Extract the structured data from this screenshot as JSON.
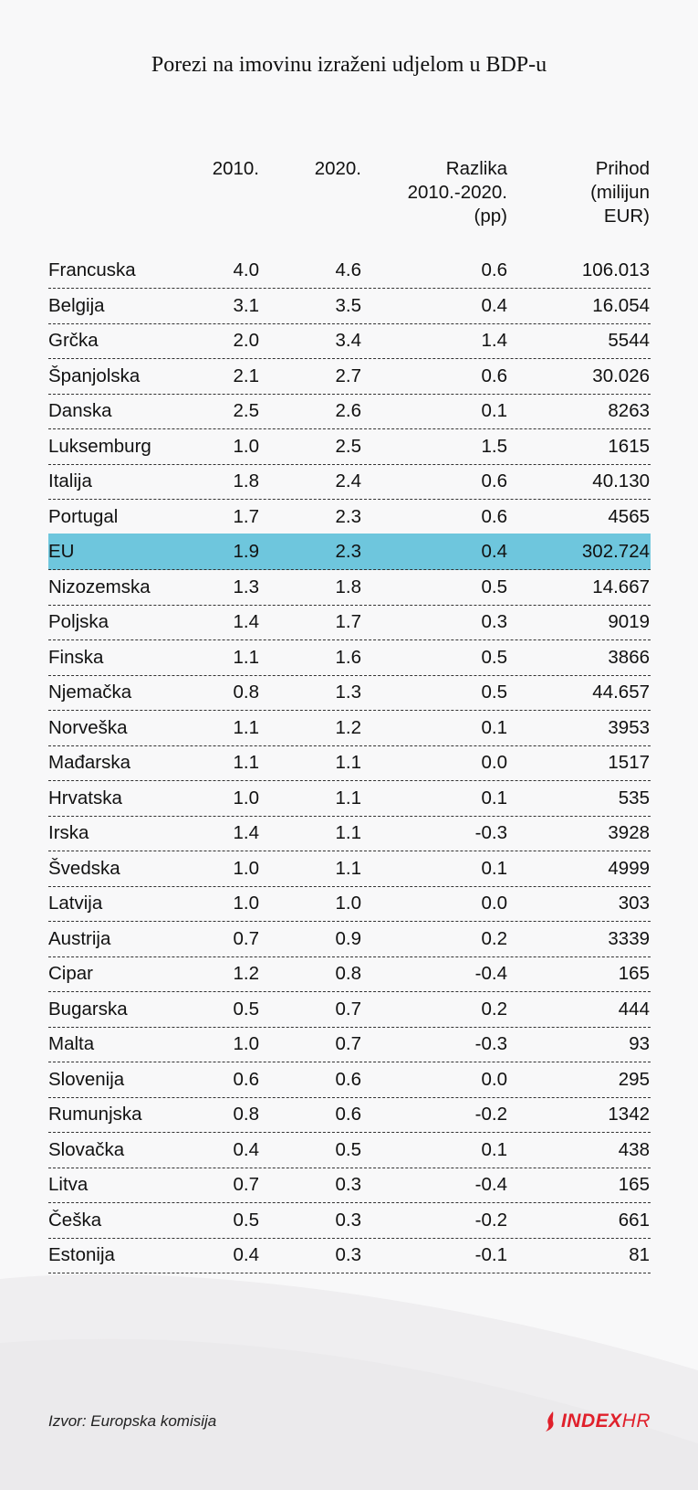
{
  "title": "Porezi na imovinu izraženi udjelom u BDP-u",
  "headers": {
    "col1": "2010.",
    "col2": "2020.",
    "col3": [
      "Razlika",
      "2010.-2020.",
      "(pp)"
    ],
    "col4": [
      "Prihod",
      "(milijun",
      "EUR)"
    ]
  },
  "source": "Izvor: Europska komisija",
  "logo": {
    "brand": "INDEX",
    "suffix": "HR"
  },
  "colors": {
    "highlight": "#6ec6dd",
    "logo": "#e0202b"
  },
  "chart_data": {
    "type": "table",
    "title": "Porezi na imovinu izraženi udjelom u BDP-u",
    "columns": [
      "",
      "2010.",
      "2020.",
      "Razlika 2010.-2020. (pp)",
      "Prihod (milijun EUR)"
    ],
    "rows": [
      [
        "Francuska",
        "4.0",
        "4.6",
        "0.6",
        "106.013"
      ],
      [
        "Belgija",
        "3.1",
        "3.5",
        "0.4",
        "16.054"
      ],
      [
        "Grčka",
        "2.0",
        "3.4",
        "1.4",
        "5544"
      ],
      [
        "Španjolska",
        "2.1",
        "2.7",
        "0.6",
        "30.026"
      ],
      [
        "Danska",
        "2.5",
        "2.6",
        "0.1",
        "8263"
      ],
      [
        "Luksemburg",
        "1.0",
        "2.5",
        "1.5",
        "1615"
      ],
      [
        "Italija",
        "1.8",
        "2.4",
        "0.6",
        "40.130"
      ],
      [
        "Portugal",
        "1.7",
        "2.3",
        "0.6",
        "4565"
      ],
      [
        "EU",
        "1.9",
        "2.3",
        "0.4",
        "302.724"
      ],
      [
        "Nizozemska",
        "1.3",
        "1.8",
        "0.5",
        "14.667"
      ],
      [
        "Poljska",
        "1.4",
        "1.7",
        "0.3",
        "9019"
      ],
      [
        "Finska",
        "1.1",
        "1.6",
        "0.5",
        "3866"
      ],
      [
        "Njemačka",
        "0.8",
        "1.3",
        "0.5",
        "44.657"
      ],
      [
        "Norveška",
        "1.1",
        "1.2",
        "0.1",
        "3953"
      ],
      [
        "Mađarska",
        "1.1",
        "1.1",
        "0.0",
        "1517"
      ],
      [
        "Hrvatska",
        "1.0",
        "1.1",
        "0.1",
        "535"
      ],
      [
        "Irska",
        "1.4",
        "1.1",
        "-0.3",
        "3928"
      ],
      [
        "Švedska",
        "1.0",
        "1.1",
        "0.1",
        "4999"
      ],
      [
        "Latvija",
        "1.0",
        "1.0",
        "0.0",
        "303"
      ],
      [
        "Austrija",
        "0.7",
        "0.9",
        "0.2",
        "3339"
      ],
      [
        "Cipar",
        "1.2",
        "0.8",
        "-0.4",
        "165"
      ],
      [
        "Bugarska",
        "0.5",
        "0.7",
        "0.2",
        "444"
      ],
      [
        "Malta",
        "1.0",
        "0.7",
        "-0.3",
        "93"
      ],
      [
        "Slovenija",
        "0.6",
        "0.6",
        "0.0",
        "295"
      ],
      [
        "Rumunjska",
        "0.8",
        "0.6",
        "-0.2",
        "1342"
      ],
      [
        "Slovačka",
        "0.4",
        "0.5",
        "0.1",
        "438"
      ],
      [
        "Litva",
        "0.7",
        "0.3",
        "-0.4",
        "165"
      ],
      [
        "Češka",
        "0.5",
        "0.3",
        "-0.2",
        "661"
      ],
      [
        "Estonija",
        "0.4",
        "0.3",
        "-0.1",
        "81"
      ]
    ],
    "highlight_row": "EU"
  }
}
